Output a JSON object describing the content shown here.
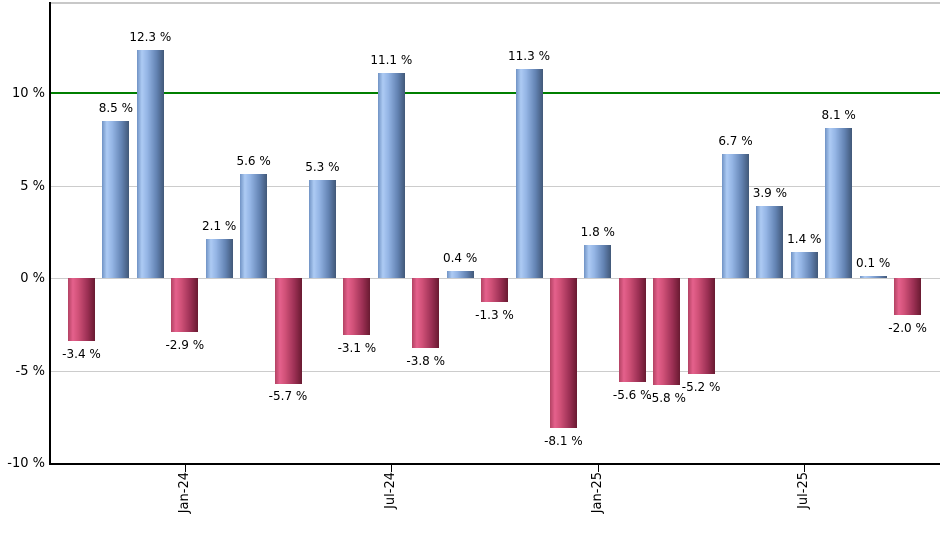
{
  "chart_data": {
    "type": "bar",
    "title": "",
    "unit": "%",
    "bars": [
      {
        "value": -3.4,
        "label": "-3.4 %"
      },
      {
        "value": 8.5,
        "label": "8.5 %"
      },
      {
        "value": 12.3,
        "label": "12.3 %"
      },
      {
        "value": -2.9,
        "label": "-2.9 %"
      },
      {
        "value": 2.1,
        "label": "2.1 %"
      },
      {
        "value": 5.6,
        "label": "5.6 %"
      },
      {
        "value": -5.7,
        "label": "-5.7 %"
      },
      {
        "value": 5.3,
        "label": "5.3 %"
      },
      {
        "value": -3.1,
        "label": "-3.1 %"
      },
      {
        "value": 11.1,
        "label": "11.1 %"
      },
      {
        "value": -3.8,
        "label": "-3.8 %"
      },
      {
        "value": 0.4,
        "label": "0.4 %"
      },
      {
        "value": -1.3,
        "label": "-1.3 %"
      },
      {
        "value": 11.3,
        "label": "11.3 %"
      },
      {
        "value": -8.1,
        "label": "-8.1 %"
      },
      {
        "value": 1.8,
        "label": "1.8 %"
      },
      {
        "value": -5.6,
        "label": "-5.6 %"
      },
      {
        "value": -5.8,
        "label": "-5.8 %"
      },
      {
        "value": -5.2,
        "label": "-5.2 %"
      },
      {
        "value": 6.7,
        "label": "6.7 %"
      },
      {
        "value": 3.9,
        "label": "3.9 %"
      },
      {
        "value": 1.4,
        "label": "1.4 %"
      },
      {
        "value": 8.1,
        "label": "8.1 %"
      },
      {
        "value": 0.1,
        "label": "0.1 %"
      },
      {
        "value": -2.0,
        "label": "-2.0 %"
      }
    ],
    "x_ticks": [
      {
        "bar_index": 3,
        "label": "Jan-24"
      },
      {
        "bar_index": 9,
        "label": "Jul-24"
      },
      {
        "bar_index": 15,
        "label": "Jan-25"
      },
      {
        "bar_index": 21,
        "label": "Jul-25"
      }
    ],
    "y_ticks": [
      {
        "value": 10,
        "label": "10 %"
      },
      {
        "value": 5,
        "label": "5 %"
      },
      {
        "value": 0,
        "label": "0 %"
      },
      {
        "value": -5,
        "label": "-5 %"
      },
      {
        "value": -10,
        "label": "-10 %"
      }
    ],
    "gridline_values": [
      5,
      0,
      -5
    ],
    "benchmark_line_value": 10,
    "ylim": [
      -10,
      15
    ],
    "legend": "none",
    "grid": "horizontal",
    "colors": {
      "positive_bar_gradient": [
        "#7092c4",
        "#adcbf4",
        "#94b5e5",
        "#6484b4",
        "#415878"
      ],
      "negative_bar_gradient": [
        "#b24263",
        "#e5618c",
        "#d05178",
        "#9c3054",
        "#691a31"
      ],
      "benchmark_line": "#007f00",
      "gridline": "#cccccc",
      "top_border": "#c8c8c8",
      "axis": "#000000",
      "label_text": "#000000"
    }
  }
}
